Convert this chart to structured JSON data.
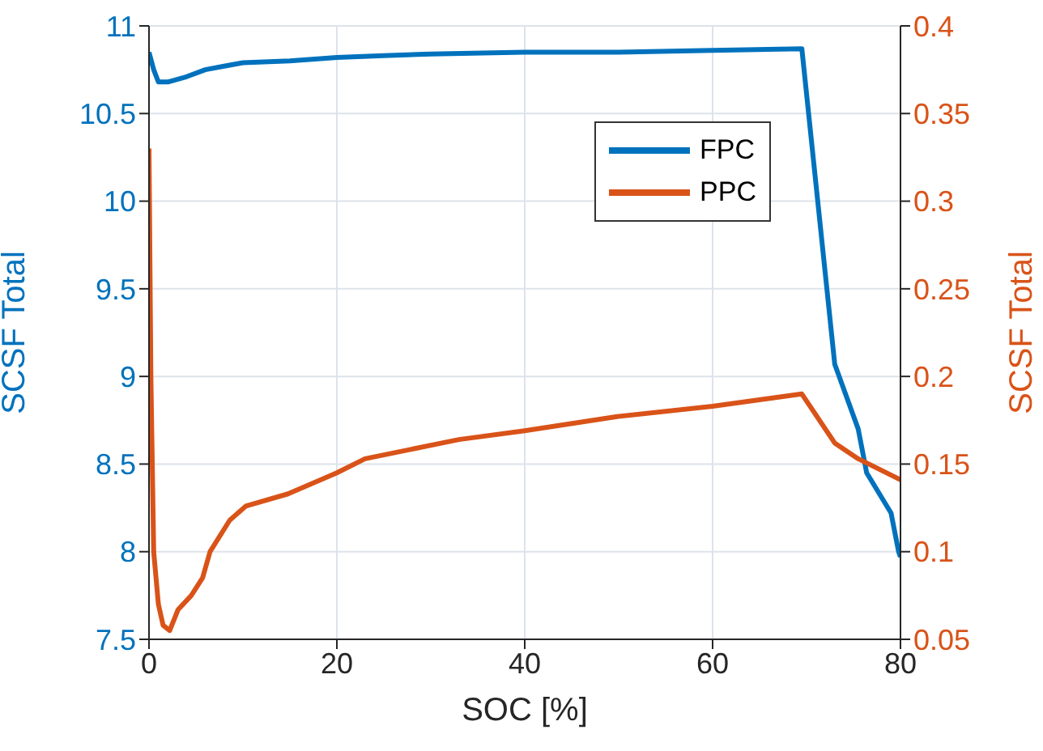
{
  "chart_data": {
    "type": "line",
    "xlabel": "SOC [%]",
    "ylabel": "SCSF Total",
    "y2label": "SCSF Total",
    "xlim": [
      0,
      80
    ],
    "xticks": [
      0,
      20,
      40,
      60,
      80
    ],
    "ylim": [
      7.5,
      11
    ],
    "yticks": [
      7.5,
      8,
      8.5,
      9,
      9.5,
      10,
      10.5,
      11
    ],
    "y2lim": [
      0.05,
      0.4
    ],
    "y2ticks": [
      0.05,
      0.1,
      0.15,
      0.2,
      0.25,
      0.3,
      0.35,
      0.4
    ],
    "grid": true,
    "legend": "top right",
    "series": [
      {
        "name": "FPC",
        "color": "#0072bd",
        "x": [
          0,
          0.5,
          1,
          2,
          4,
          6,
          8,
          10,
          15,
          20,
          25,
          30,
          40,
          50,
          60,
          69.5,
          73,
          75.5,
          76.4,
          79,
          79.8,
          80
        ],
        "values": [
          10.85,
          10.75,
          10.68,
          10.68,
          10.71,
          10.75,
          10.77,
          10.79,
          10.8,
          10.82,
          10.83,
          10.84,
          10.85,
          10.85,
          10.86,
          10.87,
          9.07,
          8.7,
          8.45,
          8.22,
          8.0,
          7.97
        ]
      },
      {
        "name": "PPC",
        "color": "#d95319",
        "axis": "y2",
        "x": [
          0,
          0.2,
          0.5,
          1,
          1.5,
          2.2,
          3.1,
          4.5,
          5.7,
          6.5,
          8.6,
          10.3,
          14.8,
          20,
          23,
          33,
          40,
          49.7,
          60,
          69.5,
          73,
          75.5,
          80
        ],
        "values": [
          0.33,
          0.2,
          0.1,
          0.07,
          0.058,
          0.055,
          0.067,
          0.075,
          0.085,
          0.1,
          0.118,
          0.126,
          0.133,
          0.145,
          0.153,
          0.164,
          0.169,
          0.177,
          0.183,
          0.19,
          0.162,
          0.153,
          0.141
        ]
      }
    ]
  }
}
